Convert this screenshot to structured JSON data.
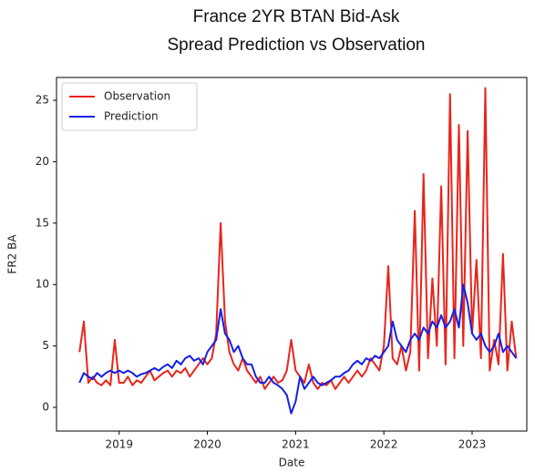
{
  "chart_data": {
    "type": "line",
    "title": [
      "France 2YR BTAN Bid-Ask",
      "Spread Prediction vs Observation"
    ],
    "xlabel": "Date",
    "ylabel": "FR2 BA",
    "x": [
      2018.55,
      2018.6,
      2018.65,
      2018.7,
      2018.75,
      2018.8,
      2018.85,
      2018.9,
      2018.95,
      2019.0,
      2019.05,
      2019.1,
      2019.15,
      2019.2,
      2019.25,
      2019.3,
      2019.35,
      2019.4,
      2019.45,
      2019.5,
      2019.55,
      2019.6,
      2019.65,
      2019.7,
      2019.75,
      2019.8,
      2019.85,
      2019.9,
      2019.95,
      2020.0,
      2020.05,
      2020.1,
      2020.15,
      2020.2,
      2020.25,
      2020.3,
      2020.35,
      2020.4,
      2020.45,
      2020.5,
      2020.55,
      2020.6,
      2020.65,
      2020.7,
      2020.75,
      2020.8,
      2020.85,
      2020.9,
      2020.95,
      2021.0,
      2021.05,
      2021.1,
      2021.15,
      2021.2,
      2021.25,
      2021.3,
      2021.35,
      2021.4,
      2021.45,
      2021.5,
      2021.55,
      2021.6,
      2021.65,
      2021.7,
      2021.75,
      2021.8,
      2021.85,
      2021.9,
      2021.95,
      2022.0,
      2022.05,
      2022.1,
      2022.15,
      2022.2,
      2022.25,
      2022.3,
      2022.35,
      2022.4,
      2022.45,
      2022.5,
      2022.55,
      2022.6,
      2022.65,
      2022.7,
      2022.75,
      2022.8,
      2022.85,
      2022.9,
      2022.95,
      2023.0,
      2023.05,
      2023.1,
      2023.15,
      2023.2,
      2023.25,
      2023.3,
      2023.35,
      2023.4,
      2023.45,
      2023.5
    ],
    "series": [
      {
        "name": "Observation",
        "color": "#e8251c",
        "values": [
          4.5,
          7.0,
          2.0,
          2.5,
          2.0,
          1.8,
          2.2,
          1.8,
          5.5,
          2.0,
          2.0,
          2.5,
          1.8,
          2.2,
          2.0,
          2.5,
          3.0,
          2.2,
          2.5,
          2.8,
          3.0,
          2.5,
          3.0,
          2.8,
          3.2,
          2.5,
          3.0,
          3.5,
          4.0,
          3.5,
          4.0,
          6.0,
          15.0,
          7.0,
          4.5,
          3.5,
          3.0,
          4.0,
          3.0,
          2.5,
          2.0,
          2.5,
          1.5,
          2.0,
          2.5,
          2.0,
          2.2,
          3.0,
          5.5,
          3.0,
          2.5,
          2.0,
          3.5,
          2.0,
          1.5,
          2.0,
          1.8,
          2.2,
          1.5,
          2.0,
          2.5,
          2.0,
          2.5,
          3.0,
          2.5,
          3.0,
          4.0,
          3.5,
          3.0,
          5.0,
          11.5,
          4.0,
          3.5,
          5.0,
          3.0,
          4.5,
          16.0,
          3.0,
          19.0,
          4.0,
          10.5,
          5.0,
          18.0,
          3.5,
          25.5,
          4.0,
          23.0,
          5.0,
          22.5,
          6.0,
          12.0,
          4.0,
          26.0,
          3.0,
          5.5,
          3.5,
          12.5,
          3.0,
          7.0,
          4.0
        ]
      },
      {
        "name": "Prediction",
        "color": "#1420e6",
        "values": [
          2.0,
          2.8,
          2.5,
          2.3,
          2.8,
          2.5,
          2.8,
          3.0,
          2.8,
          3.0,
          2.8,
          3.0,
          2.8,
          2.5,
          2.7,
          2.8,
          3.0,
          3.2,
          3.0,
          3.3,
          3.5,
          3.2,
          3.8,
          3.5,
          4.0,
          4.2,
          3.8,
          4.0,
          3.5,
          4.5,
          5.0,
          5.5,
          8.0,
          6.0,
          5.5,
          4.5,
          5.0,
          4.0,
          3.5,
          3.5,
          2.5,
          2.0,
          2.0,
          2.5,
          2.0,
          1.8,
          1.5,
          1.0,
          -0.5,
          0.5,
          2.5,
          1.5,
          2.0,
          2.5,
          2.0,
          1.8,
          2.0,
          2.2,
          2.5,
          2.5,
          2.8,
          3.0,
          3.5,
          3.8,
          3.5,
          4.0,
          3.8,
          4.2,
          4.0,
          4.5,
          5.0,
          7.0,
          5.5,
          5.0,
          4.5,
          5.5,
          6.0,
          5.5,
          6.5,
          6.0,
          7.0,
          6.5,
          7.5,
          6.5,
          7.0,
          8.0,
          6.5,
          10.0,
          8.5,
          6.0,
          5.5,
          6.0,
          5.0,
          4.5,
          5.0,
          6.0,
          4.5,
          5.0,
          4.5,
          4.0
        ]
      }
    ],
    "xlim": [
      2018.29,
      2023.62
    ],
    "xticks": [
      2019,
      2020,
      2021,
      2022,
      2023
    ],
    "ylim": [
      -1.93,
      26.86
    ],
    "yticks": [
      0,
      5,
      10,
      15,
      20,
      25
    ],
    "legend": "upper left",
    "grid": false
  }
}
